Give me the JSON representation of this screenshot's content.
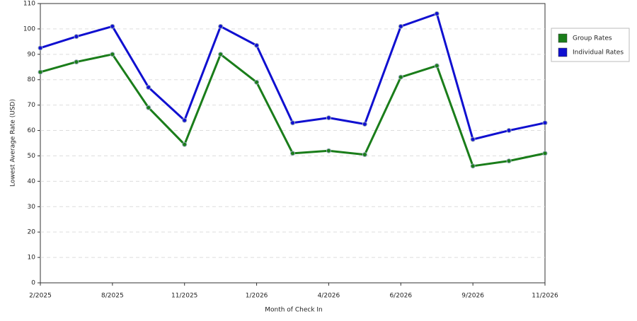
{
  "chart_data": {
    "type": "line",
    "x_label": "Month of Check In",
    "y_label": "Lowest Average Rate (USD)",
    "categories": [
      "2/2025",
      null,
      "8/2025",
      null,
      "11/2025",
      null,
      "1/2026",
      null,
      "4/2026",
      null,
      "6/2026",
      null,
      "9/2026",
      null,
      "11/2026"
    ],
    "series": [
      {
        "name": "Group Rates",
        "color": "#1a7d1a",
        "values": [
          83,
          87,
          90,
          69,
          54.5,
          90,
          79,
          51,
          52,
          50.5,
          81,
          85.5,
          46,
          48,
          51
        ]
      },
      {
        "name": "Individual Rates",
        "color": "#1010d0",
        "values": [
          92.5,
          97,
          101,
          77,
          64,
          101,
          93.5,
          63,
          65,
          62.5,
          101,
          106,
          56.5,
          60,
          63
        ]
      }
    ],
    "ylim": [
      0,
      110
    ],
    "yticks": [
      0,
      10,
      20,
      30,
      40,
      50,
      60,
      70,
      80,
      90,
      100,
      110
    ],
    "grid": true,
    "legend": "right"
  }
}
